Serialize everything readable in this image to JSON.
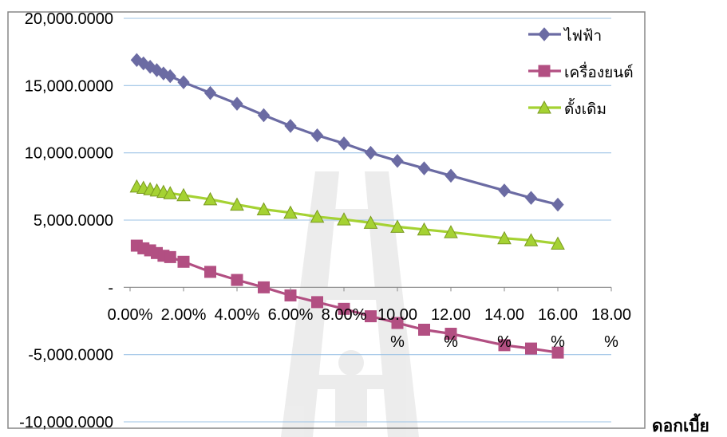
{
  "chart_data": {
    "type": "line",
    "title": "",
    "xlabel": "ดอกเบี้ย",
    "ylabel": "",
    "xlim": [
      0,
      0.18
    ],
    "ylim": [
      -10000,
      20000
    ],
    "x_ticks": [
      0,
      0.02,
      0.04,
      0.06,
      0.08,
      0.1,
      0.12,
      0.14,
      0.16,
      0.18
    ],
    "x_tick_labels": [
      "0.00%",
      "2.00%",
      "4.00%",
      "6.00%",
      "8.00%",
      "10.00 %",
      "12.00 %",
      "14.00 %",
      "16.00 %",
      "18.00 %"
    ],
    "y_ticks": [
      -10000,
      -5000,
      0,
      5000,
      10000,
      15000,
      20000
    ],
    "y_tick_labels": [
      "-10,000.0000",
      "-5,000.0000",
      "-",
      "5,000.0000",
      "10,000.0000",
      "15,000.0000",
      "20,000.0000"
    ],
    "grid": "horizontal",
    "legend_position": "top-right",
    "x": [
      0.0025,
      0.005,
      0.0075,
      0.01,
      0.0125,
      0.015,
      0.02,
      0.03,
      0.04,
      0.05,
      0.06,
      0.07,
      0.08,
      0.09,
      0.1,
      0.11,
      0.12,
      0.14,
      0.15,
      0.16
    ],
    "series": [
      {
        "name": "ไฟฟ้า",
        "color": "#6B6BA3",
        "marker": "diamond",
        "values": [
          16900,
          16650,
          16400,
          16150,
          15900,
          15700,
          15250,
          14450,
          13650,
          12800,
          12000,
          11300,
          10700,
          10000,
          9400,
          8850,
          8300,
          7200,
          6650,
          6150
        ]
      },
      {
        "name": "เครื่องยนต์",
        "color": "#B24F82",
        "marker": "square",
        "values": [
          3100,
          2900,
          2750,
          2550,
          2350,
          2250,
          1900,
          1150,
          550,
          0,
          -600,
          -1100,
          -1600,
          -2150,
          -2650,
          -3150,
          -3450,
          -4300,
          -4550,
          -4850
        ]
      },
      {
        "name": "ดั้งเดิม",
        "color": "#A5D233",
        "marker": "triangle",
        "values": [
          7500,
          7400,
          7300,
          7200,
          7100,
          7000,
          6850,
          6550,
          6150,
          5800,
          5550,
          5250,
          5050,
          4800,
          4500,
          4300,
          4100,
          3650,
          3500,
          3250
        ]
      }
    ]
  }
}
